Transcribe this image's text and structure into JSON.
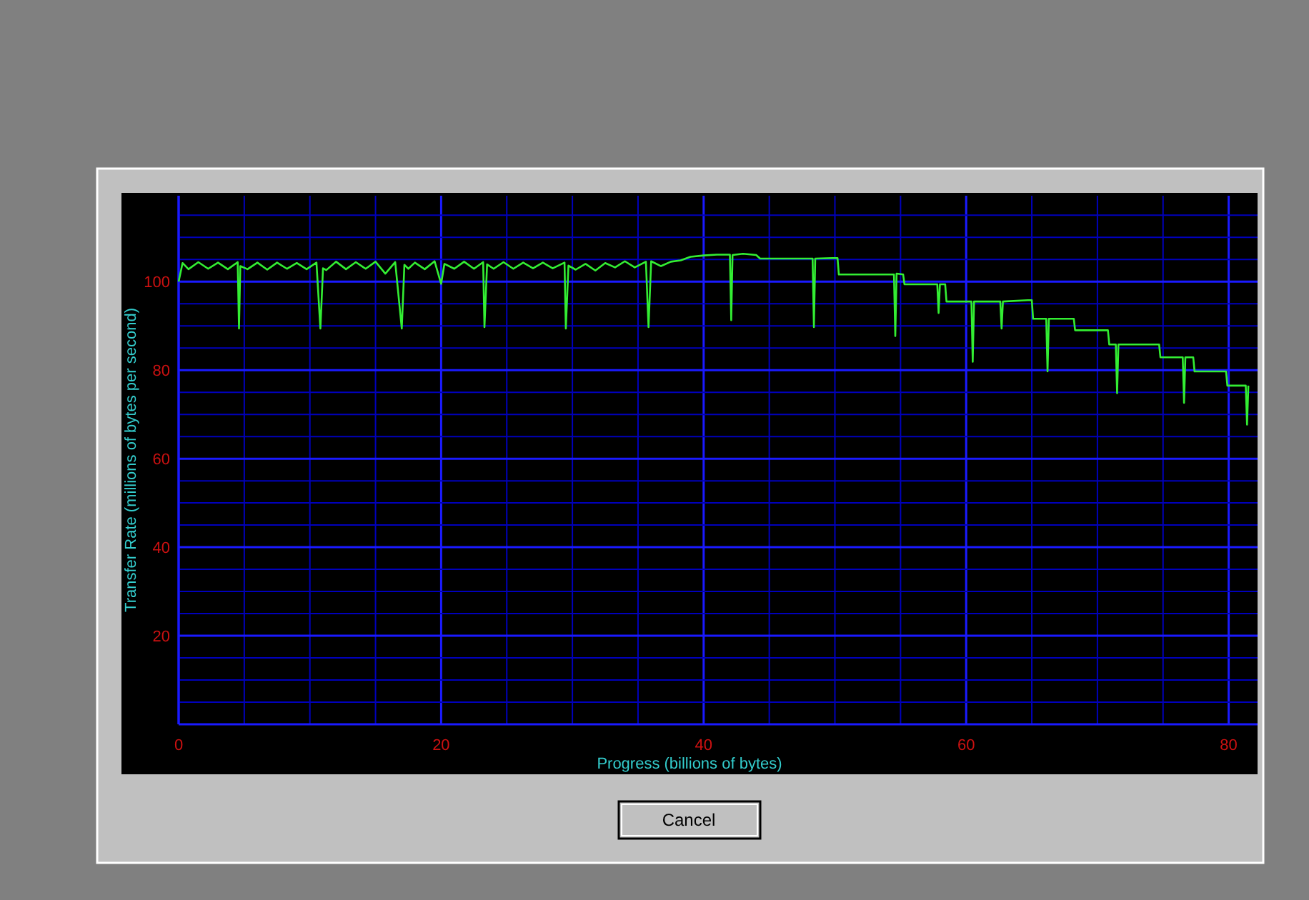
{
  "chart_data": {
    "type": "line",
    "xlabel": "Progress (billions of bytes)",
    "ylabel": "Transfer Rate (millions of bytes per second)",
    "xlim": [
      0,
      82.2
    ],
    "ylim": [
      0,
      119.4
    ],
    "xticks": [
      0,
      {
        "value": 5,
        "label": null
      },
      {
        "value": 10,
        "label": null
      },
      {
        "value": 15,
        "label": null
      },
      20,
      {
        "value": 25,
        "label": null
      },
      {
        "value": 30,
        "label": null
      },
      {
        "value": 35,
        "label": null
      },
      40,
      {
        "value": 45,
        "label": null
      },
      {
        "value": 50,
        "label": null
      },
      {
        "value": 55,
        "label": null
      },
      60,
      {
        "value": 65,
        "label": null
      },
      {
        "value": 70,
        "label": null
      },
      {
        "value": 75,
        "label": null
      },
      80
    ],
    "yticks": [
      {
        "value": 5,
        "label": null
      },
      {
        "value": 10,
        "label": null
      },
      {
        "value": 15,
        "label": null
      },
      20,
      {
        "value": 25,
        "label": null
      },
      {
        "value": 30,
        "label": null
      },
      {
        "value": 35,
        "label": null
      },
      40,
      {
        "value": 45,
        "label": null
      },
      {
        "value": 50,
        "label": null
      },
      {
        "value": 55,
        "label": null
      },
      60,
      {
        "value": 65,
        "label": null
      },
      {
        "value": 70,
        "label": null
      },
      {
        "value": 75,
        "label": null
      },
      80,
      {
        "value": 85,
        "label": null
      },
      {
        "value": 90,
        "label": null
      },
      {
        "value": 95,
        "label": null
      },
      100,
      {
        "value": 105,
        "label": null
      },
      {
        "value": 110,
        "label": null
      },
      {
        "value": 115,
        "label": null
      }
    ],
    "grid": true,
    "line_style": "solid",
    "marker": "none",
    "annotations": [
      "Cancel"
    ],
    "series": [
      {
        "color": "#33ee33",
        "x": [
          0,
          0.3,
          0.75,
          1.5,
          2.25,
          3,
          3.75,
          4.5,
          4.6,
          4.7,
          5.25,
          6,
          6.75,
          7.5,
          8.25,
          9,
          9.75,
          10.5,
          10.8,
          11.0,
          11.25,
          12,
          12.75,
          13.5,
          14.25,
          15,
          15.75,
          16.5,
          17.0,
          17.2,
          17.5,
          18,
          18.75,
          19.5,
          20.0,
          20.25,
          21,
          21.75,
          22.5,
          23.2,
          23.3,
          23.5,
          24,
          24.75,
          25.5,
          26.25,
          27,
          27.75,
          28.5,
          29.4,
          29.5,
          29.7,
          30.25,
          31,
          31.75,
          32.5,
          33.25,
          34,
          34.75,
          35.6,
          35.8,
          36.0,
          36.75,
          37.5,
          38.25,
          39,
          40,
          41,
          42.0,
          42.1,
          42.2,
          43,
          44.0,
          44.3,
          48.3,
          48.4,
          48.5,
          49.8,
          50.2,
          50.3,
          54.5,
          54.6,
          54.7,
          55.2,
          55.3,
          57.8,
          57.9,
          58.0,
          58.4,
          58.5,
          60.4,
          60.5,
          60.6,
          62.6,
          62.7,
          62.8,
          64.7,
          65.0,
          65.1,
          66.1,
          66.2,
          66.3,
          68.2,
          68.3,
          70.8,
          70.9,
          71.4,
          71.5,
          71.6,
          74.7,
          74.8,
          76.5,
          76.6,
          76.7,
          77.3,
          77.4,
          79.8,
          79.9,
          81.3,
          81.4,
          81.5
        ],
        "values": [
          100,
          104.2,
          102.8,
          104.4,
          102.9,
          104.3,
          102.8,
          104.4,
          89.4,
          103.5,
          102.8,
          104.3,
          102.7,
          104.3,
          102.9,
          104.2,
          102.8,
          104.3,
          89.4,
          103,
          102.6,
          104.5,
          102.8,
          104.4,
          102.9,
          104.5,
          101.8,
          104.4,
          89.4,
          103.8,
          102.9,
          104.3,
          102.8,
          104.6,
          99.5,
          104.0,
          102.9,
          104.5,
          102.9,
          104.4,
          89.7,
          103.9,
          102.9,
          104.4,
          102.9,
          104.3,
          103.0,
          104.3,
          103.0,
          104.3,
          89.4,
          103.6,
          102.7,
          104.0,
          102.5,
          104.2,
          103.2,
          104.6,
          103.2,
          104.5,
          89.7,
          104.6,
          103.5,
          104.5,
          104.8,
          105.6,
          105.9,
          106.1,
          106.1,
          91.3,
          106.0,
          106.3,
          106.0,
          105.2,
          105.2,
          89.7,
          105.2,
          105.3,
          105.3,
          101.6,
          101.6,
          87.7,
          101.8,
          101.6,
          99.4,
          99.4,
          92.9,
          99.4,
          99.4,
          95.5,
          95.5,
          81.9,
          95.5,
          95.5,
          89.4,
          95.5,
          95.8,
          95.8,
          91.6,
          91.6,
          79.7,
          91.6,
          91.6,
          89.0,
          89.0,
          85.8,
          85.8,
          74.8,
          85.8,
          85.8,
          82.9,
          82.9,
          72.6,
          82.9,
          82.9,
          79.7,
          79.7,
          76.5,
          76.5,
          67.7,
          76.5
        ]
      }
    ]
  }
}
